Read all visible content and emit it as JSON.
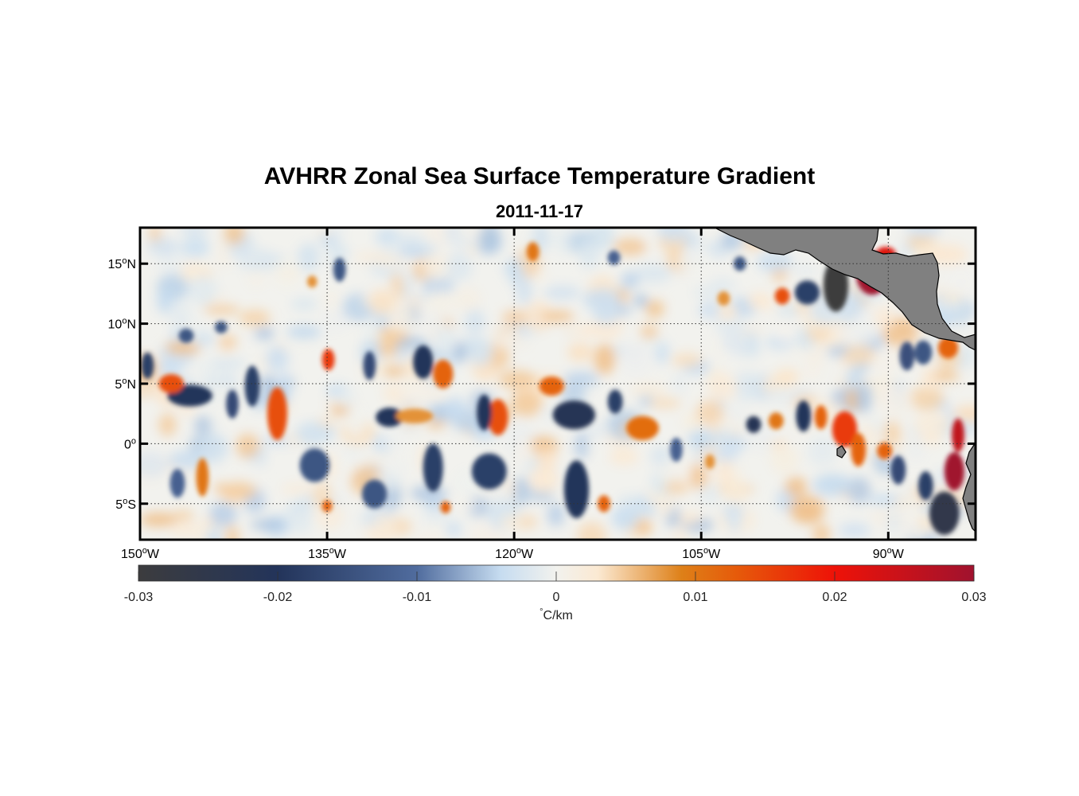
{
  "title": "AVHRR Zonal Sea Surface Temperature Gradient",
  "subtitle": "2011-11-17",
  "map": {
    "lon_range": [
      -150,
      -83
    ],
    "lat_range": [
      -8,
      18
    ],
    "x_ticks": [
      {
        "lon": -150,
        "deg": "150",
        "hem": "W"
      },
      {
        "lon": -135,
        "deg": "135",
        "hem": "W"
      },
      {
        "lon": -120,
        "deg": "120",
        "hem": "W"
      },
      {
        "lon": -105,
        "deg": "105",
        "hem": "W"
      },
      {
        "lon": -90,
        "deg": "90",
        "hem": "W"
      }
    ],
    "y_ticks": [
      {
        "lat": 15,
        "deg": "15",
        "hem": "N"
      },
      {
        "lat": 10,
        "deg": "10",
        "hem": "N"
      },
      {
        "lat": 5,
        "deg": "5",
        "hem": "N"
      },
      {
        "lat": 0,
        "deg": "0",
        "hem": ""
      },
      {
        "lat": -5,
        "deg": "5",
        "hem": "S"
      }
    ],
    "grid": true,
    "land_color": "#808080",
    "features": [
      {
        "lon": -91.3,
        "lat": 14.2,
        "rx": 1.3,
        "ry": 1.8,
        "v": 0.03
      },
      {
        "lon": -94.2,
        "lat": 13.2,
        "rx": 1.0,
        "ry": 2.2,
        "v": -0.03
      },
      {
        "lon": -96.5,
        "lat": 12.6,
        "rx": 1.0,
        "ry": 1.0,
        "v": -0.018
      },
      {
        "lon": -90.2,
        "lat": 15.8,
        "rx": 0.8,
        "ry": 0.6,
        "v": 0.022
      },
      {
        "lon": -84.4,
        "lat": 0.7,
        "rx": 0.5,
        "ry": 1.4,
        "v": 0.026
      },
      {
        "lon": -84.7,
        "lat": -2.3,
        "rx": 0.8,
        "ry": 1.6,
        "v": 0.03
      },
      {
        "lon": -85.5,
        "lat": -5.8,
        "rx": 1.2,
        "ry": 1.8,
        "v": -0.025
      },
      {
        "lon": -85.2,
        "lat": 8.0,
        "rx": 0.8,
        "ry": 0.9,
        "v": 0.012
      },
      {
        "lon": -87.2,
        "lat": 7.6,
        "rx": 0.7,
        "ry": 1.0,
        "v": -0.014
      },
      {
        "lon": -88.5,
        "lat": 7.3,
        "rx": 0.6,
        "ry": 1.2,
        "v": -0.015
      },
      {
        "lon": -93.5,
        "lat": 1.2,
        "rx": 1.0,
        "ry": 1.5,
        "v": 0.016
      },
      {
        "lon": -92.4,
        "lat": -0.5,
        "rx": 0.6,
        "ry": 1.4,
        "v": 0.012
      },
      {
        "lon": -96.8,
        "lat": 2.3,
        "rx": 0.6,
        "ry": 1.3,
        "v": -0.02
      },
      {
        "lon": -95.4,
        "lat": 2.2,
        "rx": 0.5,
        "ry": 1.0,
        "v": 0.012
      },
      {
        "lon": -100.8,
        "lat": 1.6,
        "rx": 0.6,
        "ry": 0.7,
        "v": -0.022
      },
      {
        "lon": -99.0,
        "lat": 1.9,
        "rx": 0.6,
        "ry": 0.7,
        "v": 0.01
      },
      {
        "lon": -90.3,
        "lat": -0.6,
        "rx": 0.6,
        "ry": 0.7,
        "v": 0.012
      },
      {
        "lon": -89.2,
        "lat": -2.2,
        "rx": 0.6,
        "ry": 1.2,
        "v": -0.016
      },
      {
        "lon": -87.0,
        "lat": -3.5,
        "rx": 0.6,
        "ry": 1.2,
        "v": -0.018
      },
      {
        "lon": -98.5,
        "lat": 12.3,
        "rx": 0.6,
        "ry": 0.7,
        "v": 0.014
      },
      {
        "lon": -101.9,
        "lat": 15.0,
        "rx": 0.5,
        "ry": 0.6,
        "v": -0.014
      },
      {
        "lon": -103.2,
        "lat": 12.1,
        "rx": 0.5,
        "ry": 0.6,
        "v": 0.008
      },
      {
        "lon": -109.7,
        "lat": 1.3,
        "rx": 1.3,
        "ry": 1.0,
        "v": 0.011
      },
      {
        "lon": -111.9,
        "lat": 3.5,
        "rx": 0.6,
        "ry": 1.0,
        "v": -0.018
      },
      {
        "lon": -115.2,
        "lat": 2.4,
        "rx": 1.7,
        "ry": 1.2,
        "v": -0.022
      },
      {
        "lon": -117.0,
        "lat": 4.8,
        "rx": 1.0,
        "ry": 0.8,
        "v": 0.012
      },
      {
        "lon": -121.3,
        "lat": 2.2,
        "rx": 0.8,
        "ry": 1.5,
        "v": 0.014
      },
      {
        "lon": -122.4,
        "lat": 2.6,
        "rx": 0.6,
        "ry": 1.5,
        "v": -0.02
      },
      {
        "lon": -125.7,
        "lat": 5.8,
        "rx": 0.8,
        "ry": 1.2,
        "v": 0.012
      },
      {
        "lon": -127.3,
        "lat": 6.8,
        "rx": 0.8,
        "ry": 1.4,
        "v": -0.02
      },
      {
        "lon": -130.0,
        "lat": 2.2,
        "rx": 1.1,
        "ry": 0.8,
        "v": -0.02
      },
      {
        "lon": -131.6,
        "lat": 6.5,
        "rx": 0.5,
        "ry": 1.2,
        "v": -0.016
      },
      {
        "lon": -128.0,
        "lat": 2.3,
        "rx": 1.5,
        "ry": 0.6,
        "v": 0.008
      },
      {
        "lon": -134.9,
        "lat": 7.0,
        "rx": 0.5,
        "ry": 0.9,
        "v": 0.016
      },
      {
        "lon": -139.0,
        "lat": 2.5,
        "rx": 0.8,
        "ry": 2.2,
        "v": 0.014
      },
      {
        "lon": -141.0,
        "lat": 4.8,
        "rx": 0.6,
        "ry": 1.7,
        "v": -0.018
      },
      {
        "lon": -142.6,
        "lat": 3.3,
        "rx": 0.5,
        "ry": 1.2,
        "v": -0.016
      },
      {
        "lon": -146.0,
        "lat": 4.0,
        "rx": 1.8,
        "ry": 0.9,
        "v": -0.02
      },
      {
        "lon": -147.5,
        "lat": 5.0,
        "rx": 1.0,
        "ry": 0.8,
        "v": 0.014
      },
      {
        "lon": -149.4,
        "lat": 6.5,
        "rx": 0.5,
        "ry": 1.1,
        "v": -0.018
      },
      {
        "lon": -146.3,
        "lat": 9.0,
        "rx": 0.6,
        "ry": 0.6,
        "v": -0.014
      },
      {
        "lon": -143.5,
        "lat": 9.7,
        "rx": 0.5,
        "ry": 0.5,
        "v": -0.014
      },
      {
        "lon": -134.0,
        "lat": 14.5,
        "rx": 0.5,
        "ry": 1.0,
        "v": -0.014
      },
      {
        "lon": -136.2,
        "lat": 13.5,
        "rx": 0.4,
        "ry": 0.5,
        "v": 0.008
      },
      {
        "lon": -118.5,
        "lat": 16.0,
        "rx": 0.5,
        "ry": 0.8,
        "v": 0.01
      },
      {
        "lon": -112.0,
        "lat": 15.5,
        "rx": 0.5,
        "ry": 0.6,
        "v": -0.012
      },
      {
        "lon": -126.5,
        "lat": -2.0,
        "rx": 0.8,
        "ry": 2.0,
        "v": -0.018
      },
      {
        "lon": -122.0,
        "lat": -2.3,
        "rx": 1.4,
        "ry": 1.5,
        "v": -0.018
      },
      {
        "lon": -115.0,
        "lat": -3.8,
        "rx": 1.0,
        "ry": 2.4,
        "v": -0.02
      },
      {
        "lon": -112.8,
        "lat": -5.0,
        "rx": 0.5,
        "ry": 0.7,
        "v": 0.012
      },
      {
        "lon": -136.0,
        "lat": -1.8,
        "rx": 1.2,
        "ry": 1.4,
        "v": -0.014
      },
      {
        "lon": -131.2,
        "lat": -4.2,
        "rx": 1.0,
        "ry": 1.2,
        "v": -0.014
      },
      {
        "lon": -145.0,
        "lat": -2.8,
        "rx": 0.5,
        "ry": 1.6,
        "v": 0.01
      },
      {
        "lon": -147.0,
        "lat": -3.3,
        "rx": 0.6,
        "ry": 1.2,
        "v": -0.012
      },
      {
        "lon": -135.0,
        "lat": -5.2,
        "rx": 0.4,
        "ry": 0.5,
        "v": 0.012
      },
      {
        "lon": -125.5,
        "lat": -5.3,
        "rx": 0.4,
        "ry": 0.5,
        "v": 0.012
      },
      {
        "lon": -107.0,
        "lat": -0.5,
        "rx": 0.5,
        "ry": 1.0,
        "v": -0.012
      },
      {
        "lon": -104.3,
        "lat": -1.5,
        "rx": 0.4,
        "ry": 0.6,
        "v": 0.008
      }
    ]
  },
  "colorbar": {
    "vmin": -0.03,
    "vmax": 0.03,
    "ticks": [
      "-0.03",
      "-0.02",
      "-0.01",
      "0",
      "0.01",
      "0.02",
      "0.03"
    ],
    "unit_symbol": "°",
    "unit": "C/km",
    "stops": [
      {
        "v": -0.03,
        "c": "#3c3c3e"
      },
      {
        "v": -0.02,
        "c": "#23345a"
      },
      {
        "v": -0.01,
        "c": "#506c9e"
      },
      {
        "v": -0.004,
        "c": "#c6dcf0"
      },
      {
        "v": 0.0,
        "c": "#f2f2ee"
      },
      {
        "v": 0.003,
        "c": "#fbe9d2"
      },
      {
        "v": 0.009,
        "c": "#de8018"
      },
      {
        "v": 0.013,
        "c": "#e65a0a"
      },
      {
        "v": 0.02,
        "c": "#ee1208"
      },
      {
        "v": 0.03,
        "c": "#a0122e"
      }
    ]
  }
}
